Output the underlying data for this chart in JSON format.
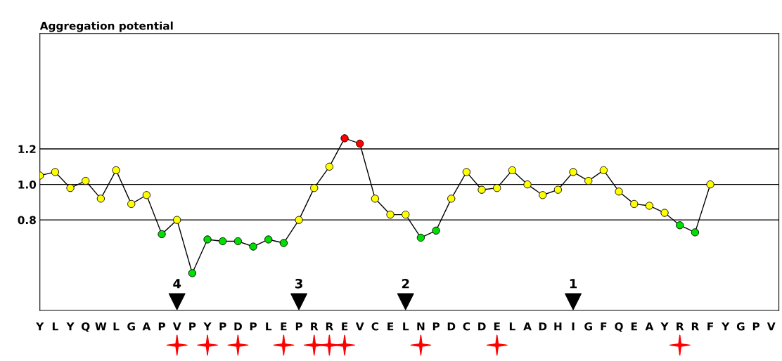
{
  "chart_data": {
    "type": "line",
    "title": "Aggregation potential",
    "categories": [
      "Y",
      "L",
      "Y",
      "Q",
      "W",
      "L",
      "G",
      "A",
      "P",
      "V",
      "P",
      "Y",
      "P",
      "D",
      "P",
      "L",
      "E",
      "P",
      "R",
      "R",
      "E",
      "V",
      "C",
      "E",
      "L",
      "N",
      "P",
      "D",
      "C",
      "D",
      "E",
      "L",
      "A",
      "D",
      "H",
      "I",
      "G",
      "F",
      "Q",
      "E",
      "A",
      "Y",
      "R",
      "R",
      "F",
      "Y",
      "G",
      "P",
      "V"
    ],
    "series": [
      {
        "marker": "circle",
        "color": "#000000",
        "values": [
          1.05,
          1.07,
          0.98,
          1.02,
          0.92,
          1.08,
          0.89,
          0.94,
          0.72,
          0.8,
          0.5,
          0.69,
          0.68,
          0.68,
          0.65,
          0.69,
          0.67,
          0.8,
          0.98,
          1.1,
          1.26,
          1.23,
          0.92,
          0.83,
          0.83,
          0.7,
          0.74,
          0.92,
          1.07,
          0.97,
          0.98,
          1.08,
          1.0,
          0.94,
          0.97,
          1.07,
          1.02,
          1.08,
          0.96,
          0.89,
          0.88,
          0.84,
          0.77,
          0.73,
          1.0,
          null,
          null,
          null,
          null
        ],
        "colors": [
          "#ffff00",
          "#ffff00",
          "#ffff00",
          "#ffff00",
          "#ffff00",
          "#ffff00",
          "#ffff00",
          "#ffff00",
          "#00e000",
          "#ffff00",
          "#00e000",
          "#00e000",
          "#00e000",
          "#00e000",
          "#00e000",
          "#00e000",
          "#00e000",
          "#ffff00",
          "#ffff00",
          "#ffff00",
          "#ff0000",
          "#ff0000",
          "#ffff00",
          "#ffff00",
          "#ffff00",
          "#00e000",
          "#00e000",
          "#ffff00",
          "#ffff00",
          "#ffff00",
          "#ffff00",
          "#ffff00",
          "#ffff00",
          "#ffff00",
          "#ffff00",
          "#ffff00",
          "#ffff00",
          "#ffff00",
          "#ffff00",
          "#ffff00",
          "#ffff00",
          "#ffff00",
          "#00e000",
          "#00e000",
          "#ffff00",
          null,
          null,
          null,
          null
        ]
      },
      {
        "type": "scatter",
        "name": "4",
        "marker": "triangle",
        "color": "#000000",
        "values": [
          null,
          null,
          null,
          null,
          null,
          null,
          null,
          null,
          null,
          0.34,
          null,
          null,
          null,
          null,
          null,
          null,
          null,
          null,
          null,
          null,
          null,
          null,
          null,
          null,
          null,
          null,
          null,
          null,
          null,
          null,
          null,
          null,
          null,
          null,
          null,
          null,
          null,
          null,
          null,
          null,
          null,
          null,
          null,
          null,
          null,
          null,
          null,
          null,
          null
        ]
      },
      {
        "type": "scatter",
        "name": "3",
        "marker": "triangle",
        "color": "#000000",
        "values": [
          null,
          null,
          null,
          null,
          null,
          null,
          null,
          null,
          null,
          null,
          null,
          null,
          null,
          null,
          null,
          null,
          null,
          0.34,
          null,
          null,
          null,
          null,
          null,
          null,
          null,
          null,
          null,
          null,
          null,
          null,
          null,
          null,
          null,
          null,
          null,
          null,
          null,
          null,
          null,
          null,
          null,
          null,
          null,
          null,
          null,
          null,
          null,
          null,
          null
        ]
      },
      {
        "type": "scatter",
        "name": "2",
        "marker": "triangle",
        "color": "#000000",
        "values": [
          null,
          null,
          null,
          null,
          null,
          null,
          null,
          null,
          null,
          null,
          null,
          null,
          null,
          null,
          null,
          null,
          null,
          null,
          null,
          null,
          null,
          null,
          null,
          null,
          0.34,
          null,
          null,
          null,
          null,
          null,
          null,
          null,
          null,
          null,
          null,
          null,
          null,
          null,
          null,
          null,
          null,
          null,
          null,
          null,
          null,
          null,
          null,
          null,
          null
        ]
      },
      {
        "type": "scatter",
        "name": "1",
        "marker": "triangle",
        "color": "#000000",
        "values": [
          null,
          null,
          null,
          null,
          null,
          null,
          null,
          null,
          null,
          null,
          null,
          null,
          null,
          null,
          null,
          null,
          null,
          null,
          null,
          null,
          null,
          null,
          null,
          null,
          null,
          null,
          null,
          null,
          null,
          null,
          null,
          null,
          null,
          null,
          null,
          0.34,
          null,
          null,
          null,
          null,
          null,
          null,
          null,
          null,
          null,
          null,
          null,
          null,
          null
        ]
      }
    ],
    "ylim": [
      0.29,
      1.85
    ],
    "yticks": [
      0.8,
      {
        "value": 1.0,
        "label": "1.0"
      },
      1.2
    ],
    "grid": "y"
  }
}
